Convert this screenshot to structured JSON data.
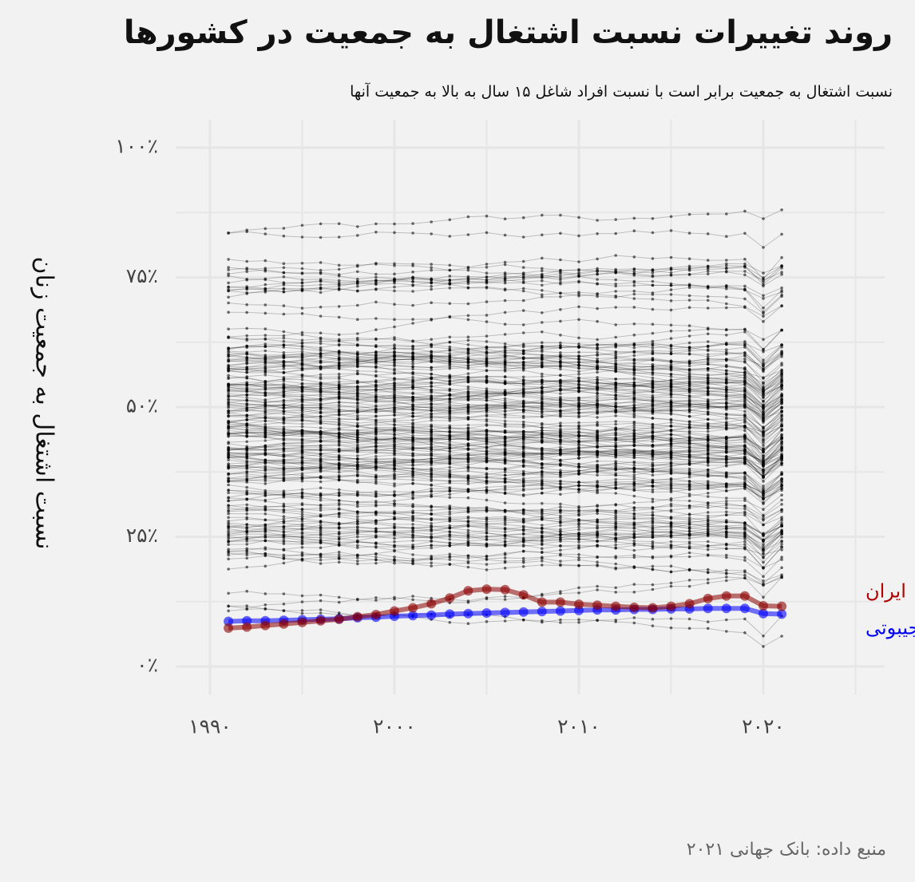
{
  "title": "روند تغییرات نسبت اشتغال به جمعیت در کشورها",
  "subtitle": "نسبت اشتغال به جمعیت برابر است با نسبت افراد شاغل ۱۵ سال به بالا به جمعیت آنها",
  "caption": "منبع داده: بانک جهانی ۲۰۲۱",
  "colors": {
    "background": "#f2f2f2",
    "grid": "#e6e6e6",
    "other_countries": "#000000",
    "iran": "#8b0000",
    "iran_label": "#b30000",
    "djibouti": "#0000ff"
  },
  "chart_data": {
    "type": "line",
    "ylabel": "نسبت اشتغال به جمعیت زنان",
    "xlabel": "",
    "xlim": [
      1990,
      2026
    ],
    "ylim": [
      0,
      100
    ],
    "x_ticks": [
      1990,
      2000,
      2010,
      2020
    ],
    "x_tick_labels": [
      "۱۹۹۰",
      "۲۰۰۰",
      "۲۰۱۰",
      "۲۰۲۰"
    ],
    "y_ticks": [
      0,
      25,
      50,
      75,
      100
    ],
    "y_tick_labels": [
      "۰٪",
      "۲۵٪",
      "۵۰٪",
      "۷۵٪",
      "۱۰۰٪"
    ],
    "grid": true,
    "legend": "none (direct labels at right end of lines)",
    "highlighted_series": [
      {
        "name": "ایران",
        "label": "ایران",
        "x": [
          1991,
          1992,
          1993,
          1994,
          1995,
          1996,
          1997,
          1998,
          1999,
          2000,
          2001,
          2002,
          2003,
          2004,
          2005,
          2006,
          2007,
          2008,
          2009,
          2010,
          2011,
          2012,
          2013,
          2014,
          2015,
          2016,
          2017,
          2018,
          2019,
          2020,
          2021
        ],
        "values": [
          7.4,
          7.6,
          7.9,
          8.2,
          8.5,
          8.8,
          9.1,
          9.6,
          10.0,
          10.7,
          11.3,
          12.1,
          13.2,
          14.6,
          14.9,
          14.8,
          13.8,
          12.4,
          12.4,
          12.0,
          11.8,
          11.6,
          11.4,
          11.3,
          11.6,
          12.1,
          13.1,
          13.6,
          13.6,
          11.7,
          11.6
        ]
      },
      {
        "name": "جیبوتی",
        "label": "جیبوتی",
        "x": [
          1991,
          1992,
          1993,
          1994,
          1995,
          1996,
          1997,
          1998,
          1999,
          2000,
          2001,
          2002,
          2003,
          2004,
          2005,
          2006,
          2007,
          2008,
          2009,
          2010,
          2011,
          2012,
          2013,
          2014,
          2015,
          2016,
          2017,
          2018,
          2019,
          2020,
          2021
        ],
        "values": [
          8.7,
          8.8,
          8.8,
          8.9,
          9.0,
          9.1,
          9.2,
          9.4,
          9.5,
          9.7,
          9.8,
          9.9,
          10.1,
          10.2,
          10.3,
          10.4,
          10.5,
          10.6,
          10.7,
          10.8,
          10.9,
          10.9,
          11.0,
          11.0,
          11.1,
          11.1,
          11.2,
          11.2,
          11.2,
          10.2,
          10.1
        ]
      }
    ],
    "background_series_summary": "About 180 other countries drawn as thin grey lines with points, 1991–2021, values mostly between about 3% and 88%, densest around 35%–60%"
  }
}
